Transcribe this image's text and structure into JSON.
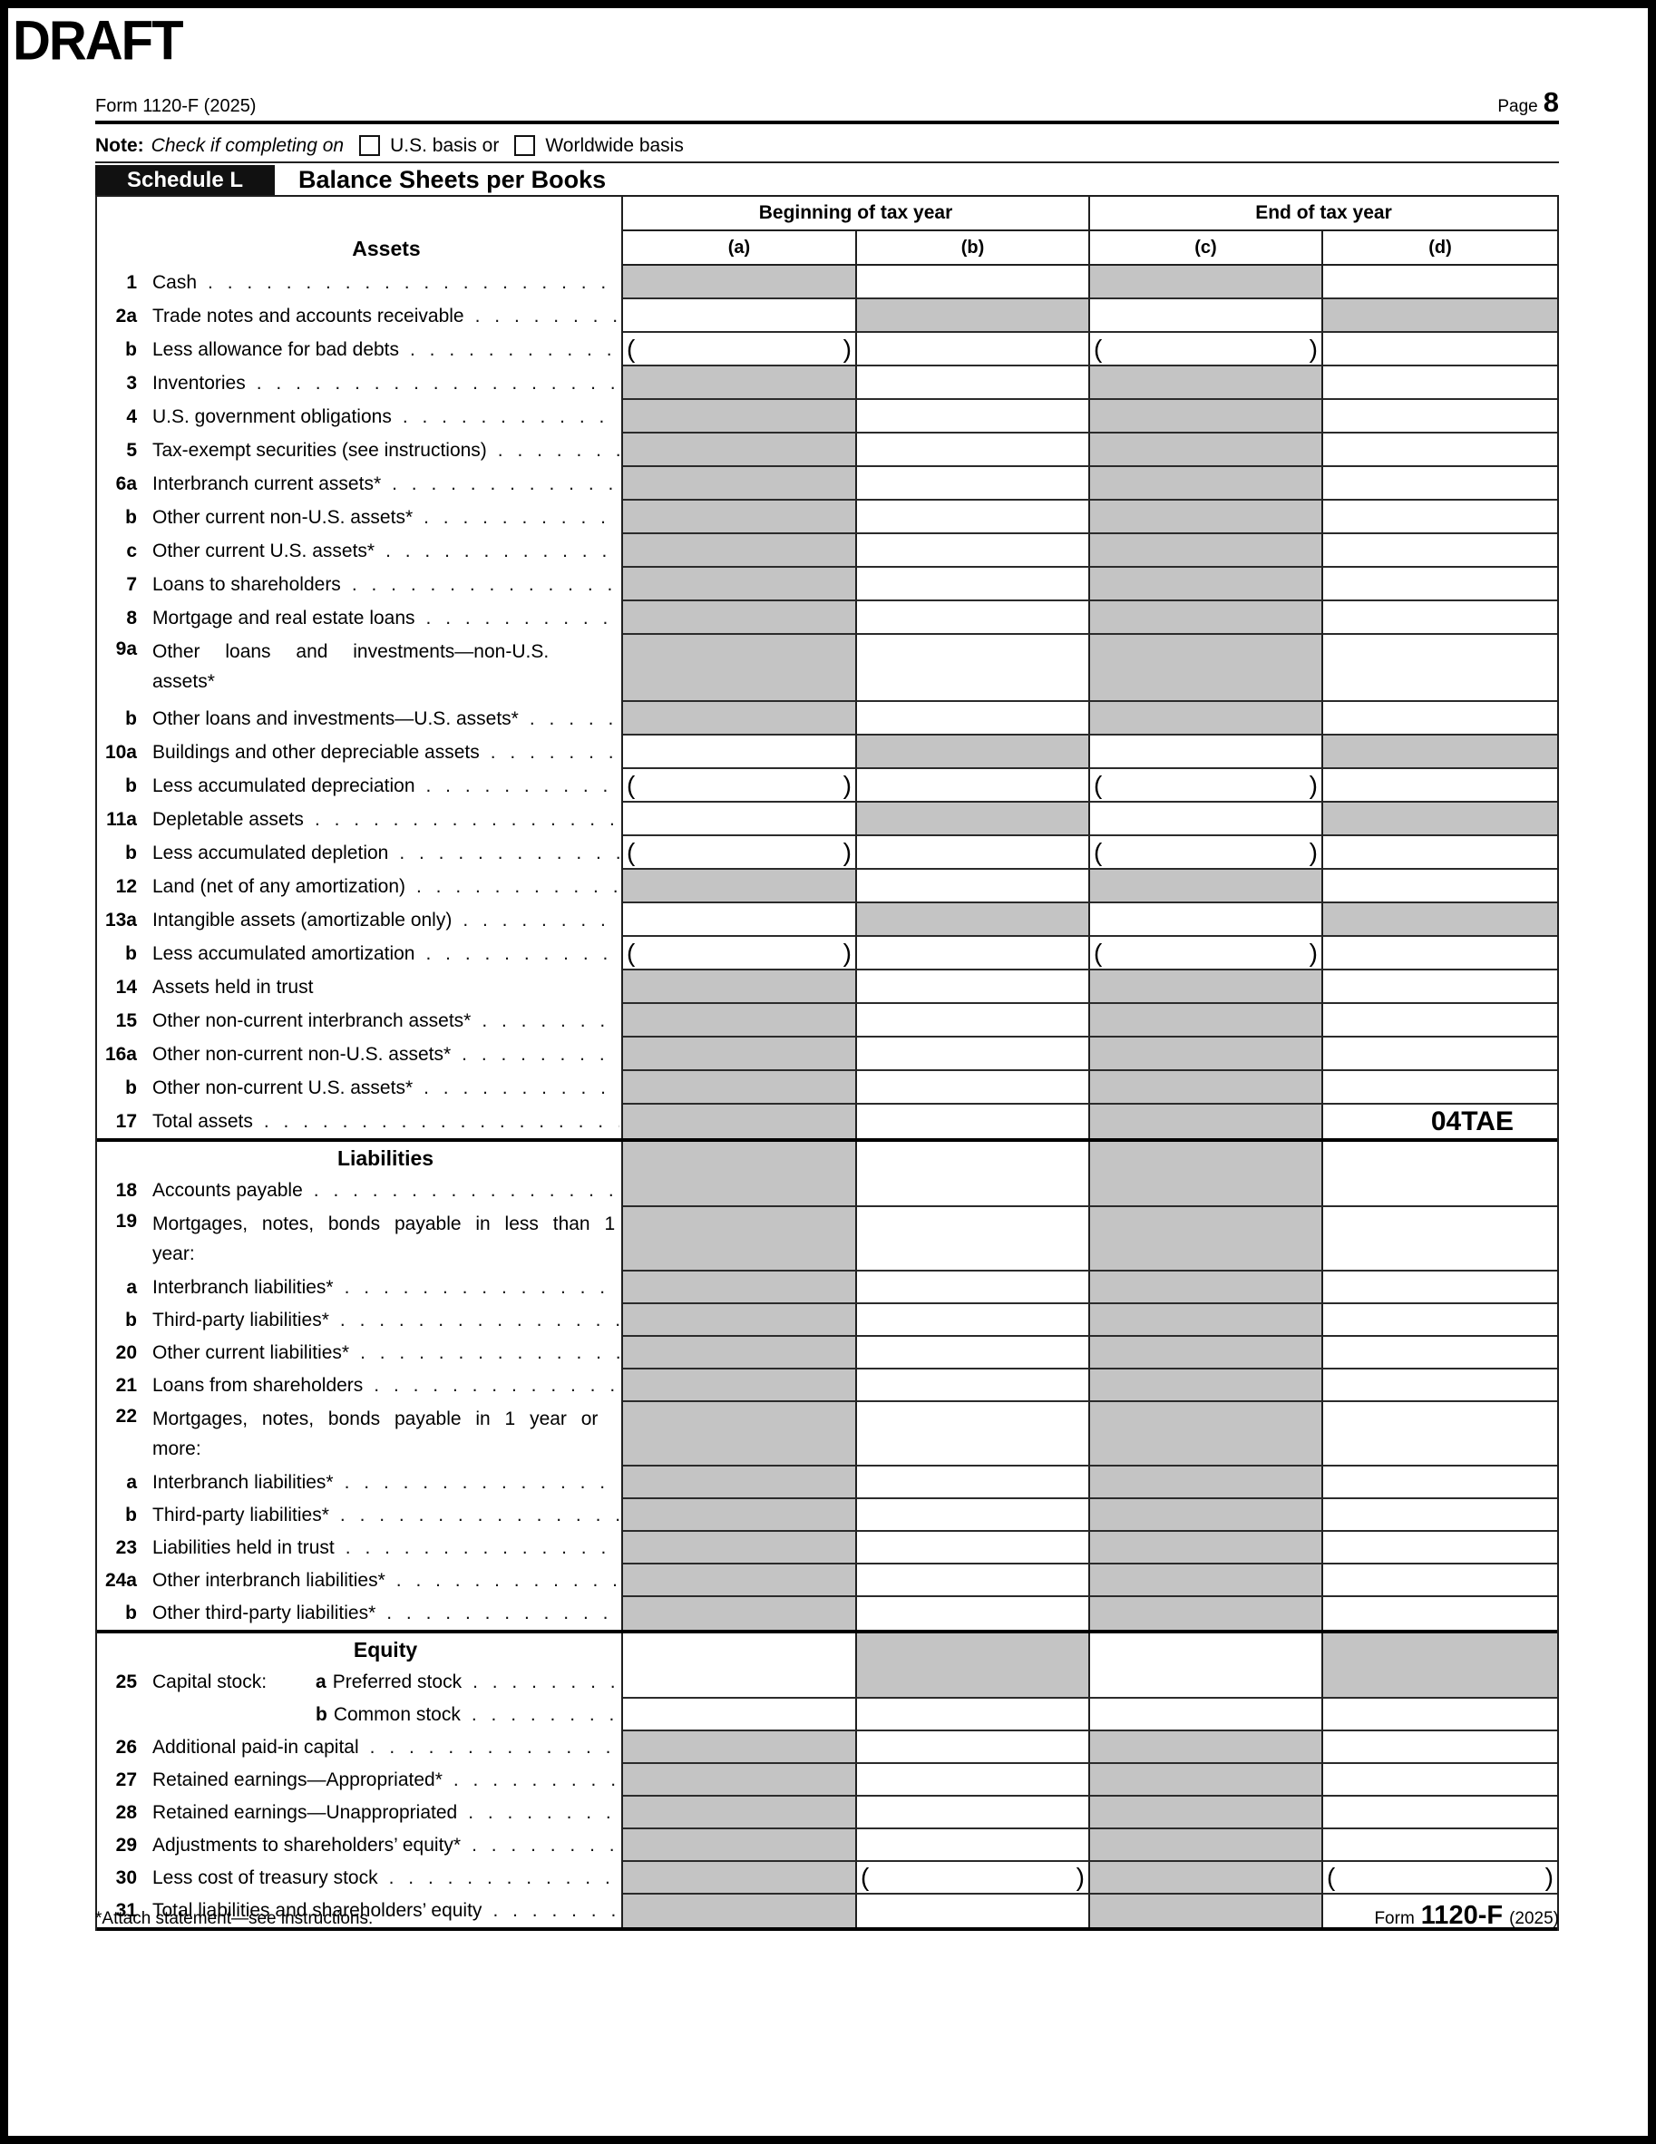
{
  "page": {
    "draft_label": "DRAFT",
    "form_id_top": "Form 1120-F (2025)",
    "page_label": "Page",
    "page_number": "8",
    "note_bold": "Note:",
    "note_italic": "Check if completing on",
    "checkbox1_label": "U.S. basis or",
    "checkbox2_label": "Worldwide basis",
    "schedule_badge": "Schedule L",
    "schedule_title": "Balance Sheets per Books",
    "col_group_begin": "Beginning of tax year",
    "col_group_end": "End of tax year",
    "col_a": "(a)",
    "col_b": "(b)",
    "col_c": "(c)",
    "col_d": "(d)",
    "assets_heading": "Assets",
    "draft_code": "04TAE",
    "paren_open": "(",
    "paren_close": ")",
    "dot_leader": ". . . . . . . . . . . . . . . . . . . . . . . . . . . . . . . . . . . . . . . .",
    "footer_note": "*Attach statement—see instructions.",
    "footer_form_prefix": "Form",
    "footer_form_number": "1120-F",
    "footer_form_year": "(2025)",
    "colors": {
      "shaded_cell": "#c4c4c4",
      "grid_line": "#1f1f1f",
      "badge_bg": "#111111",
      "badge_text": "#ffffff"
    }
  },
  "rows": [
    {
      "id": "1",
      "num": "1",
      "label": "Cash",
      "dots": 1,
      "h": 37,
      "cells": "gwgw"
    },
    {
      "id": "2a",
      "num": "2a",
      "label": "Trade notes and accounts receivable",
      "dots": 1,
      "h": 37,
      "cells": "wgwg"
    },
    {
      "id": "2b",
      "num": "b",
      "label": "Less allowance for bad debts",
      "dots": 1,
      "h": 37,
      "cells": "pwpw"
    },
    {
      "id": "3",
      "num": "3",
      "label": "Inventories",
      "dots": 1,
      "h": 37,
      "cells": "gwgw"
    },
    {
      "id": "4",
      "num": "4",
      "label": "U.S. government obligations",
      "dots": 1,
      "h": 37,
      "cells": "gwgw"
    },
    {
      "id": "5",
      "num": "5",
      "label": "Tax-exempt securities (see instructions)",
      "dots": 1,
      "h": 37,
      "cells": "gwgw"
    },
    {
      "id": "6a",
      "num": "6a",
      "label": "Interbranch current assets*",
      "dots": 1,
      "h": 37,
      "cells": "gwgw"
    },
    {
      "id": "6b",
      "num": "b",
      "label": "Other current non-U.S. assets*",
      "dots": 1,
      "h": 37,
      "cells": "gwgw"
    },
    {
      "id": "6c",
      "num": "c",
      "label": "Other current U.S. assets*",
      "dots": 1,
      "h": 37,
      "cells": "gwgw"
    },
    {
      "id": "7",
      "num": "7",
      "label": "Loans to shareholders",
      "dots": 1,
      "h": 37,
      "cells": "gwgw"
    },
    {
      "id": "8",
      "num": "8",
      "label": "Mortgage and real estate loans",
      "dots": 1,
      "h": 37,
      "cells": "gwgw"
    },
    {
      "id": "9a",
      "num": "9a",
      "label": "Other loans and investments—non-U.S. assets*",
      "dots": 0,
      "h": 74,
      "cells": "gwgw"
    },
    {
      "id": "9b",
      "num": "b",
      "label": "Other loans and investments—U.S. assets*",
      "dots": 1,
      "h": 37,
      "cells": "gwgw"
    },
    {
      "id": "10a",
      "num": "10a",
      "label": "Buildings and other depreciable assets",
      "dots": 1,
      "h": 37,
      "cells": "wgwg"
    },
    {
      "id": "10b",
      "num": "b",
      "label": "Less accumulated depreciation",
      "dots": 1,
      "h": 37,
      "cells": "pwpw"
    },
    {
      "id": "11a",
      "num": "11a",
      "label": "Depletable assets",
      "dots": 1,
      "h": 37,
      "cells": "wgwg"
    },
    {
      "id": "11b",
      "num": "b",
      "label": "Less accumulated depletion",
      "dots": 1,
      "h": 37,
      "cells": "pwpw"
    },
    {
      "id": "12",
      "num": "12",
      "label": "Land (net of any amortization)",
      "dots": 1,
      "h": 37,
      "cells": "gwgw"
    },
    {
      "id": "13a",
      "num": "13a",
      "label": "Intangible assets (amortizable only)",
      "dots": 1,
      "h": 37,
      "cells": "wgwg"
    },
    {
      "id": "13b",
      "num": "b",
      "label": "Less accumulated amortization",
      "dots": 1,
      "h": 37,
      "cells": "pwpw"
    },
    {
      "id": "14",
      "num": "14",
      "label": "Assets held in trust",
      "dots": 0,
      "h": 37,
      "cells": "gwgw"
    },
    {
      "id": "15",
      "num": "15",
      "label": "Other non-current interbranch assets*",
      "dots": 1,
      "h": 37,
      "cells": "gwgw"
    },
    {
      "id": "16a",
      "num": "16a",
      "label": "Other non-current non-U.S. assets*",
      "dots": 1,
      "h": 37,
      "cells": "gwgw"
    },
    {
      "id": "16b",
      "num": "b",
      "label": "Other non-current U.S. assets*",
      "dots": 1,
      "h": 37,
      "cells": "gwgw"
    },
    {
      "id": "17",
      "num": "17",
      "label": "Total assets",
      "dots": 1,
      "h": 37,
      "cells": "gwgw",
      "code_col": 3,
      "thick": 1
    },
    {
      "id": "liabilities",
      "heading": "Liabilities",
      "h": 36,
      "cells": "gwgw",
      "nbb": 1
    },
    {
      "id": "18",
      "num": "18",
      "label": "Accounts payable",
      "dots": 1,
      "h": 36,
      "cells": "gwgw"
    },
    {
      "id": "19",
      "num": "19",
      "label": "Mortgages, notes, bonds payable in less than 1 year:",
      "dots": 0,
      "h": 71,
      "cells": "gwgw"
    },
    {
      "id": "19a",
      "num": "a",
      "label": "Interbranch liabilities*",
      "dots": 1,
      "h": 36,
      "cells": "gwgw"
    },
    {
      "id": "19b",
      "num": "b",
      "label": "Third-party liabilities*",
      "dots": 1,
      "h": 36,
      "cells": "gwgw"
    },
    {
      "id": "20",
      "num": "20",
      "label": "Other current liabilities*",
      "dots": 1,
      "h": 36,
      "cells": "gwgw"
    },
    {
      "id": "21",
      "num": "21",
      "label": "Loans from shareholders",
      "dots": 1,
      "h": 36,
      "cells": "gwgw"
    },
    {
      "id": "22",
      "num": "22",
      "label": "Mortgages, notes, bonds payable in 1 year or more:",
      "dots": 0,
      "h": 71,
      "cells": "gwgw"
    },
    {
      "id": "22a",
      "num": "a",
      "label": "Interbranch liabilities*",
      "dots": 1,
      "h": 36,
      "cells": "gwgw"
    },
    {
      "id": "22b",
      "num": "b",
      "label": "Third-party liabilities*",
      "dots": 1,
      "h": 36,
      "cells": "gwgw"
    },
    {
      "id": "23",
      "num": "23",
      "label": "Liabilities held in trust",
      "dots": 1,
      "h": 36,
      "cells": "gwgw"
    },
    {
      "id": "24a",
      "num": "24a",
      "label": "Other interbranch liabilities*",
      "dots": 1,
      "h": 36,
      "cells": "gwgw"
    },
    {
      "id": "24b",
      "num": "b",
      "label": "Other third-party liabilities*",
      "dots": 1,
      "h": 36,
      "cells": "gwgw",
      "thick": 1
    },
    {
      "id": "equity",
      "heading": "Equity",
      "h": 36,
      "cells": "wgwg",
      "nbb": 1
    },
    {
      "id": "25a",
      "num": "25",
      "pre": "Capital stock:",
      "sub": "a",
      "label": "Preferred stock",
      "dots": 1,
      "h": 36,
      "cells": "wgwg"
    },
    {
      "id": "25b",
      "num": "",
      "pre": "",
      "sub": "b",
      "label": "Common stock",
      "dots": 1,
      "h": 36,
      "cells": "wwww"
    },
    {
      "id": "26",
      "num": "26",
      "label": "Additional paid-in capital",
      "dots": 1,
      "h": 36,
      "cells": "gwgw"
    },
    {
      "id": "27",
      "num": "27",
      "label": "Retained earnings—Appropriated*",
      "dots": 1,
      "h": 36,
      "cells": "gwgw"
    },
    {
      "id": "28",
      "num": "28",
      "label": "Retained earnings—Unappropriated",
      "dots": 1,
      "h": 36,
      "cells": "gwgw"
    },
    {
      "id": "29",
      "num": "29",
      "label": "Adjustments to shareholders’ equity*",
      "dots": 1,
      "h": 36,
      "cells": "gwgw"
    },
    {
      "id": "30",
      "num": "30",
      "label": "Less cost of treasury stock",
      "dots": 1,
      "h": 36,
      "cells": "gpgp"
    },
    {
      "id": "31",
      "num": "31",
      "label": "Total liabilities and shareholders’ equity",
      "dots": 1,
      "h": 36,
      "cells": "gwgw",
      "thick": 1
    }
  ]
}
